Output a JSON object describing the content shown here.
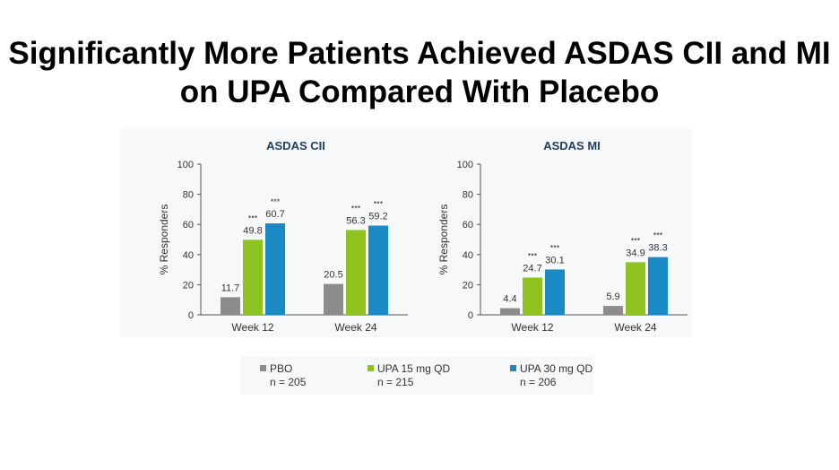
{
  "page_title": "Significantly More Patients Achieved ASDAS CII and MI on UPA Compared With Placebo",
  "colors": {
    "pbo": "#8c8c8c",
    "upa15": "#8dc21f",
    "upa30": "#1a8ac4",
    "axis": "#555555"
  },
  "legend": [
    {
      "label": "PBO",
      "n": "n = 205",
      "color": "#8c8c8c"
    },
    {
      "label": "UPA 15 mg QD",
      "n": "n = 215",
      "color": "#8dc21f"
    },
    {
      "label": "UPA 30 mg QD",
      "n": "n = 206",
      "color": "#1a8ac4"
    }
  ],
  "chart_data": [
    {
      "type": "bar",
      "title": "ASDAS CII",
      "ylabel": "% Responders",
      "xlabel": "",
      "ylim": [
        0,
        100
      ],
      "yticks": [
        0,
        20,
        40,
        60,
        80,
        100
      ],
      "categories": [
        "Week 12",
        "Week 24"
      ],
      "series": [
        {
          "name": "PBO",
          "values": [
            11.7,
            20.5
          ],
          "labels": [
            "11.7",
            "20.5"
          ],
          "sig": [
            "",
            ""
          ]
        },
        {
          "name": "UPA 15 mg QD",
          "values": [
            49.8,
            56.3
          ],
          "labels": [
            "49.8",
            "56.3"
          ],
          "sig": [
            "***",
            "***"
          ]
        },
        {
          "name": "UPA 30 mg QD",
          "values": [
            60.7,
            59.2
          ],
          "labels": [
            "60.7",
            "59.2"
          ],
          "sig": [
            "***",
            "***"
          ]
        }
      ]
    },
    {
      "type": "bar",
      "title": "ASDAS MI",
      "ylabel": "% Responders",
      "xlabel": "",
      "ylim": [
        0,
        100
      ],
      "yticks": [
        0,
        20,
        40,
        60,
        80,
        100
      ],
      "categories": [
        "Week 12",
        "Week 24"
      ],
      "series": [
        {
          "name": "PBO",
          "values": [
            4.4,
            5.9
          ],
          "labels": [
            "4.4",
            "5.9"
          ],
          "sig": [
            "",
            ""
          ]
        },
        {
          "name": "UPA 15 mg QD",
          "values": [
            24.7,
            34.9
          ],
          "labels": [
            "24.7",
            "34.9"
          ],
          "sig": [
            "***",
            "***"
          ]
        },
        {
          "name": "UPA 30 mg QD",
          "values": [
            30.1,
            38.3
          ],
          "labels": [
            "30.1",
            "38.3"
          ],
          "sig": [
            "***",
            "***"
          ]
        }
      ]
    }
  ]
}
